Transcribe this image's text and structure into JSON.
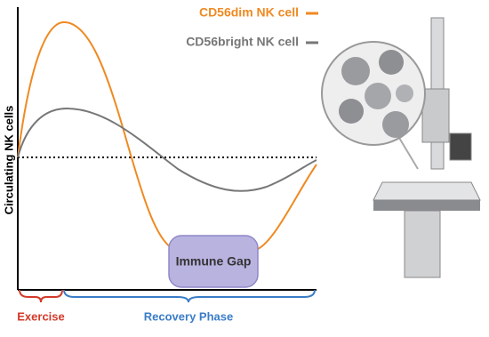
{
  "legend": {
    "dim": "CD56dim NK cell",
    "bright": "CD56bright NK cell"
  },
  "y_axis_label": "Circulating NK cells",
  "annotation": "Immune Gap",
  "phases": {
    "exercise": "Exercise",
    "recovery": "Recovery Phase"
  }
}
